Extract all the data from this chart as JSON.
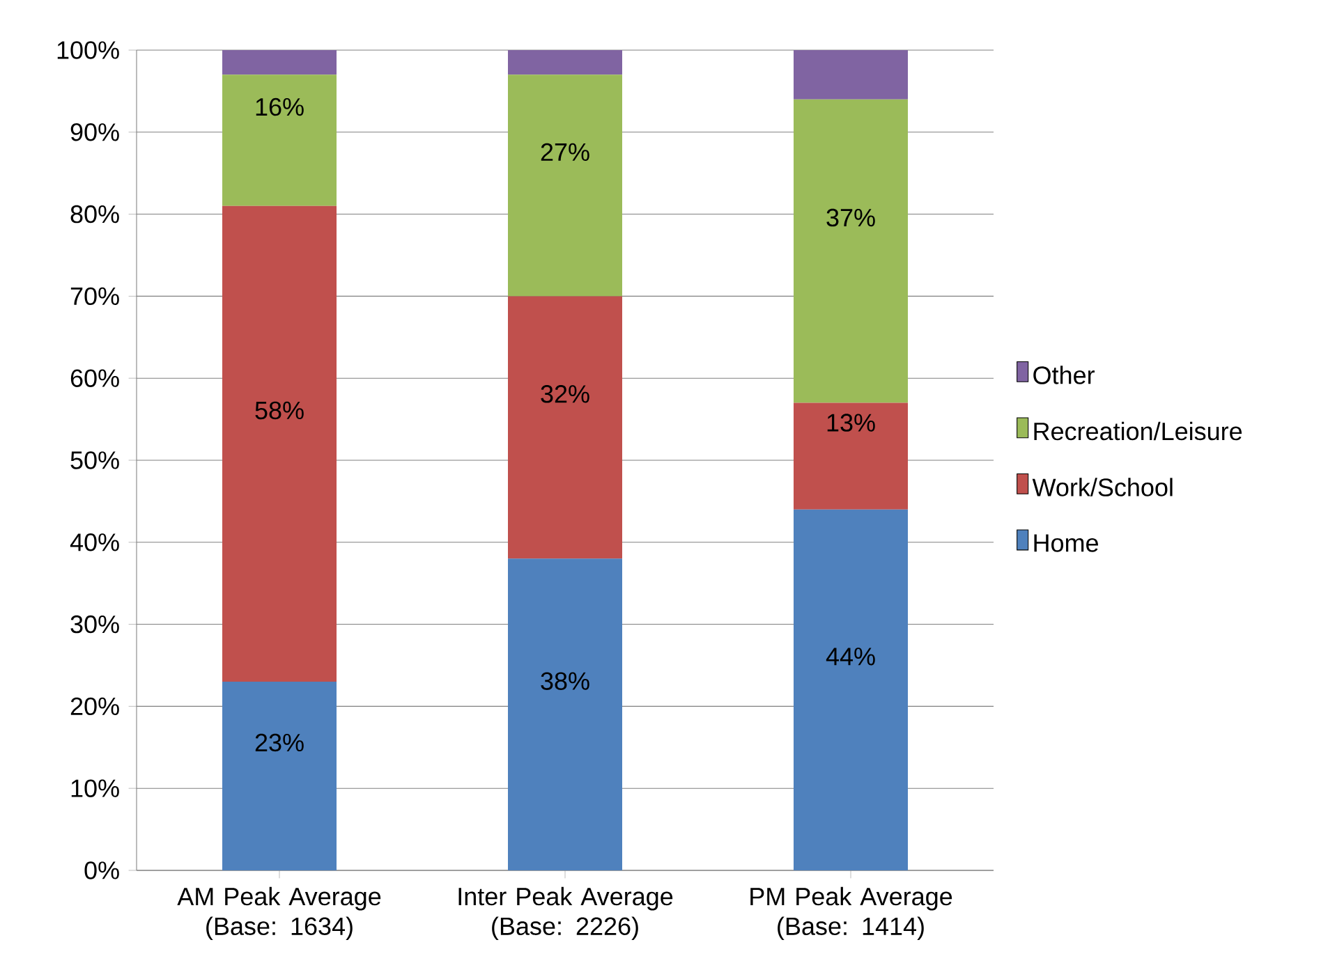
{
  "chart_data": {
    "type": "bar",
    "stacked": true,
    "categories": [
      "AM Peak Average (Base: 1634)",
      "Inter Peak Average (Base: 2226)",
      "PM Peak Average (Base: 1414)"
    ],
    "series": [
      {
        "name": "Home",
        "color": "#4f81bd",
        "values": [
          23,
          38,
          44
        ],
        "value_labels": [
          "23%",
          "38%",
          "44%"
        ]
      },
      {
        "name": "Work/School",
        "color": "#c0504d",
        "values": [
          58,
          32,
          13
        ],
        "value_labels": [
          "58%",
          "32%",
          "13%"
        ]
      },
      {
        "name": "Recreation/Leisure",
        "color": "#9bbb59",
        "values": [
          16,
          27,
          37
        ],
        "value_labels": [
          "16%",
          "27%",
          "37%"
        ]
      },
      {
        "name": "Other",
        "color": "#8064a2",
        "values": [
          3,
          3,
          6
        ],
        "value_labels": [
          null,
          null,
          null
        ]
      }
    ],
    "ylim": [
      0,
      100
    ],
    "yticks": [
      {
        "value": 0,
        "label": "0%"
      },
      {
        "value": 10,
        "label": "10%"
      },
      {
        "value": 20,
        "label": "20%"
      },
      {
        "value": 30,
        "label": "30%"
      },
      {
        "value": 40,
        "label": "40%"
      },
      {
        "value": 50,
        "label": "50%"
      },
      {
        "value": 60,
        "label": "60%"
      },
      {
        "value": 70,
        "label": "70%"
      },
      {
        "value": 80,
        "label": "80%"
      },
      {
        "value": 90,
        "label": "90%"
      },
      {
        "value": 100,
        "label": "100%"
      }
    ],
    "grid": "y",
    "legend": "right"
  }
}
